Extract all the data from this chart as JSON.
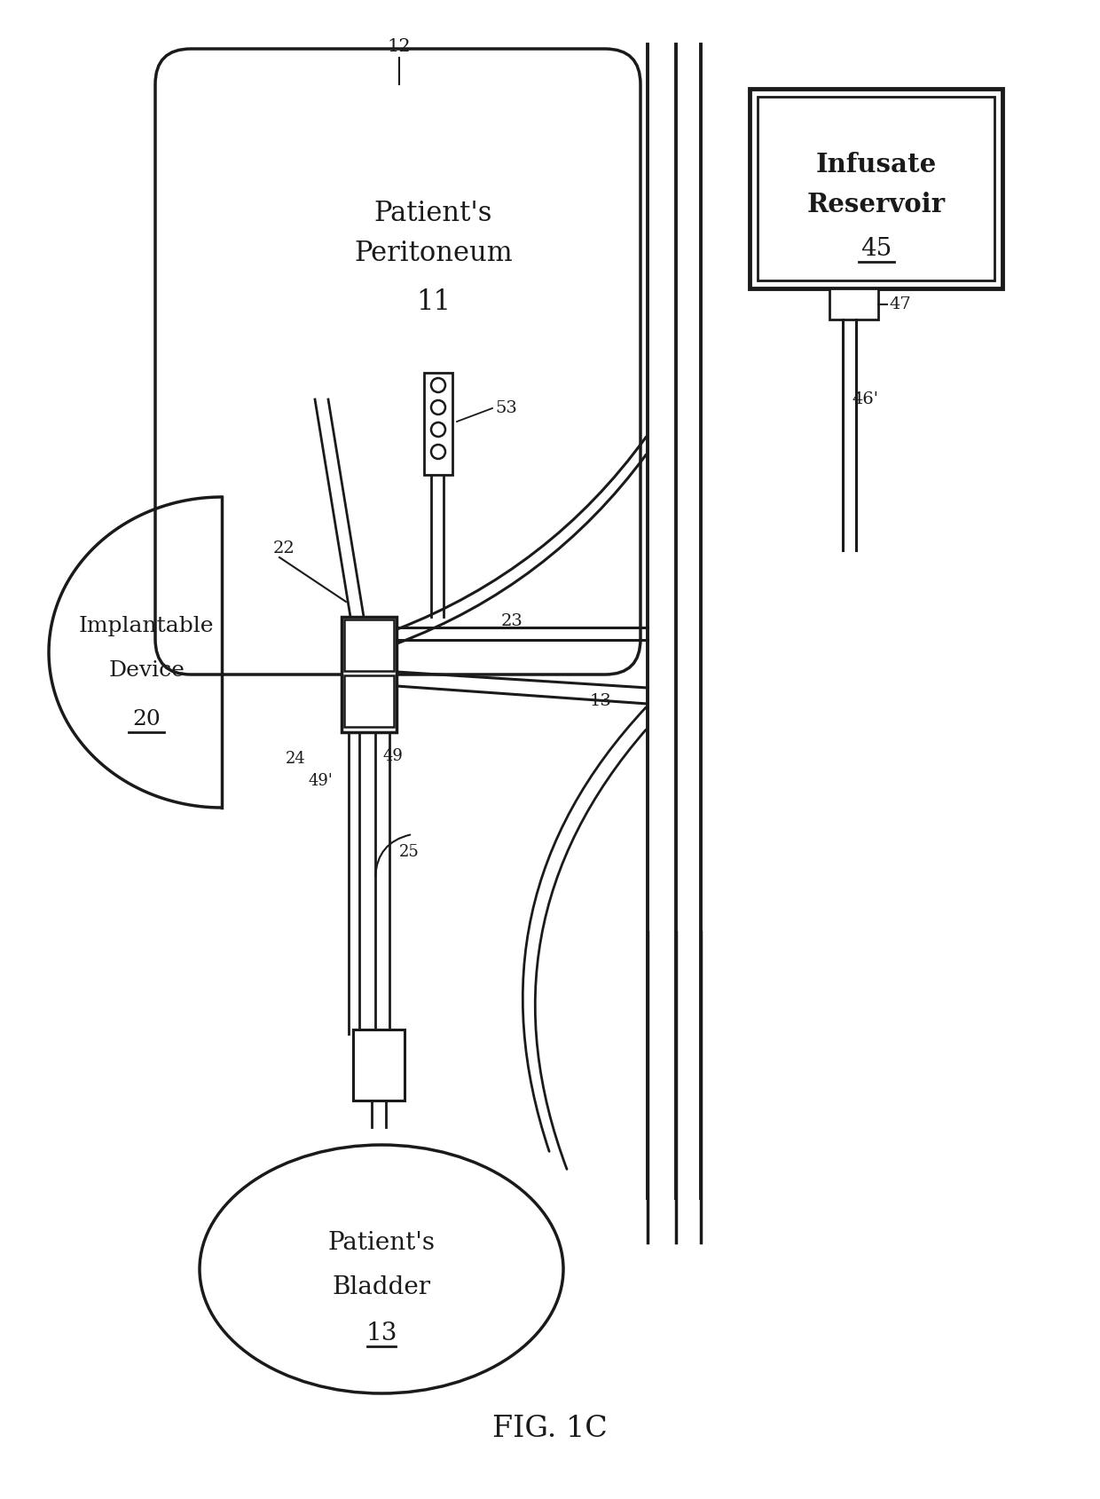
{
  "background_color": "#ffffff",
  "line_color": "#1a1a1a",
  "fig_label": "FIG. 1C",
  "peritoneum_text1": "Patient's",
  "peritoneum_text2": "Peritoneum",
  "peritoneum_num": "11",
  "peritoneum_ref": "12",
  "implantable_text1": "Implantable",
  "implantable_text2": "Device",
  "implantable_num": "20",
  "implantable_ref": "22",
  "infusate_text1": "Infusate",
  "infusate_text2": "Reservoir",
  "infusate_num": "45",
  "infusate_ref47": "47",
  "infusate_ref46": "46'",
  "bladder_text1": "Patient's",
  "bladder_text2": "Bladder",
  "bladder_num": "13",
  "ref_23": "23",
  "ref_24": "24",
  "ref_25": "25",
  "ref_49": "49",
  "ref_49p": "49'",
  "ref_53": "53",
  "ref_13": "13"
}
